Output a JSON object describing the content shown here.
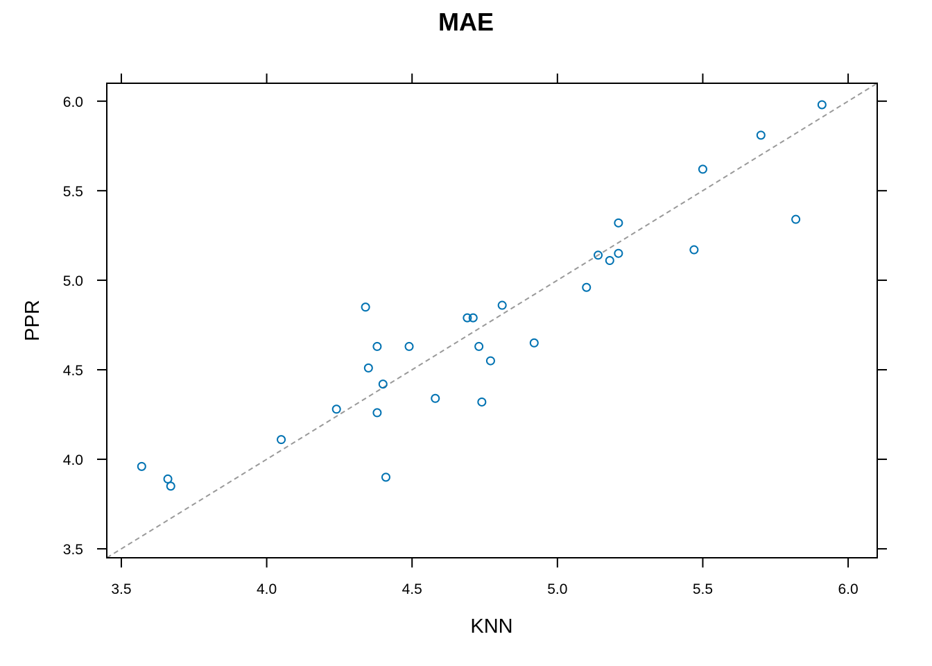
{
  "chart_data": {
    "type": "scatter",
    "title": "MAE",
    "xlabel": "KNN",
    "ylabel": "PPR",
    "xlim": [
      3.45,
      6.1
    ],
    "ylim": [
      3.45,
      6.1
    ],
    "xticks": [
      "3.5",
      "4.0",
      "4.5",
      "5.0",
      "5.5",
      "6.0"
    ],
    "yticks": [
      "3.5",
      "4.0",
      "4.5",
      "5.0",
      "5.5",
      "6.0"
    ],
    "grid": false,
    "legend": "none",
    "reference_line": {
      "type": "identity",
      "style": "dashed",
      "color": "#999999"
    },
    "point_color": "#0072b2",
    "points": [
      {
        "x": 3.57,
        "y": 3.96
      },
      {
        "x": 3.66,
        "y": 3.89
      },
      {
        "x": 3.67,
        "y": 3.85
      },
      {
        "x": 4.05,
        "y": 4.11
      },
      {
        "x": 4.24,
        "y": 4.28
      },
      {
        "x": 4.34,
        "y": 4.85
      },
      {
        "x": 4.35,
        "y": 4.51
      },
      {
        "x": 4.38,
        "y": 4.63
      },
      {
        "x": 4.38,
        "y": 4.26
      },
      {
        "x": 4.4,
        "y": 4.42
      },
      {
        "x": 4.41,
        "y": 3.9
      },
      {
        "x": 4.49,
        "y": 4.63
      },
      {
        "x": 4.58,
        "y": 4.34
      },
      {
        "x": 4.69,
        "y": 4.79
      },
      {
        "x": 4.71,
        "y": 4.79
      },
      {
        "x": 4.73,
        "y": 4.63
      },
      {
        "x": 4.74,
        "y": 4.32
      },
      {
        "x": 4.77,
        "y": 4.55
      },
      {
        "x": 4.81,
        "y": 4.86
      },
      {
        "x": 4.92,
        "y": 4.65
      },
      {
        "x": 5.1,
        "y": 4.96
      },
      {
        "x": 5.14,
        "y": 5.14
      },
      {
        "x": 5.18,
        "y": 5.11
      },
      {
        "x": 5.21,
        "y": 5.15
      },
      {
        "x": 5.21,
        "y": 5.32
      },
      {
        "x": 5.47,
        "y": 5.17
      },
      {
        "x": 5.5,
        "y": 5.62
      },
      {
        "x": 5.7,
        "y": 5.81
      },
      {
        "x": 5.82,
        "y": 5.34
      },
      {
        "x": 5.91,
        "y": 5.98
      }
    ]
  }
}
